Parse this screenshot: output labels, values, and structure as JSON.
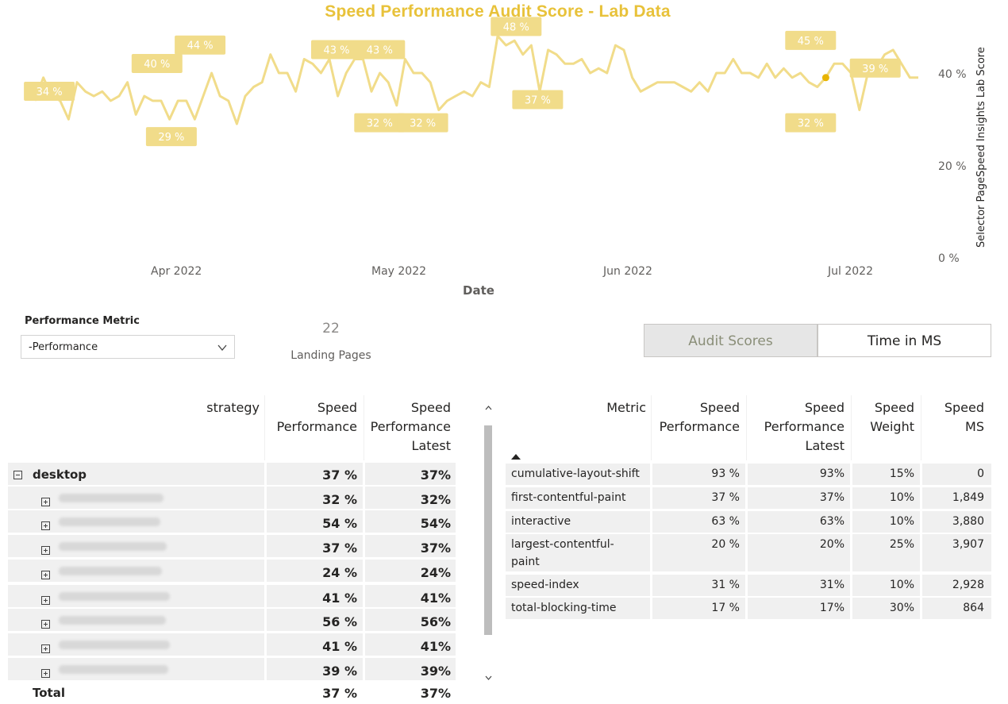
{
  "chart": {
    "title": "Speed Performance Audit Score - Lab Data",
    "x_label": "Date",
    "y_label": "Selector PageSpeed Insights Lab Score",
    "y_ticks": [
      "40 %",
      "20 %",
      "0 %"
    ],
    "x_ticks": [
      "Apr 2022",
      "May 2022",
      "Jun 2022",
      "Jul 2022"
    ],
    "line_color": "#f1dc8a",
    "highlight_color": "#e8b400"
  },
  "chart_data": {
    "type": "line",
    "title": "Speed Performance Audit Score - Lab Data",
    "xlabel": "Date",
    "ylabel": "Selector PageSpeed Insights Lab Score",
    "ylim": [
      0,
      50
    ],
    "x_range": [
      "2022-03-15",
      "2022-07-16"
    ],
    "series": [
      {
        "values": [
          34,
          39,
          35,
          34,
          30,
          38,
          36,
          35,
          36,
          34,
          35,
          38,
          31,
          35,
          34,
          34,
          30,
          34,
          34,
          30,
          35,
          40,
          35,
          34,
          29,
          35,
          37,
          38,
          44,
          40,
          40,
          36,
          43,
          42,
          40,
          43,
          35,
          40,
          43,
          43,
          36,
          40,
          38,
          33,
          43,
          40,
          40,
          38,
          32,
          34,
          35,
          36,
          35,
          38,
          37,
          48,
          46,
          47,
          44,
          46,
          36,
          45,
          44,
          42,
          42,
          43,
          40,
          41,
          40,
          46,
          45,
          39,
          36,
          37,
          38,
          38,
          38,
          37,
          36,
          38,
          36,
          40,
          40,
          43,
          40,
          40,
          39,
          42,
          39,
          41,
          39,
          40,
          38,
          37,
          39,
          42,
          42,
          40,
          32,
          40,
          41,
          44,
          45,
          42,
          39,
          39
        ],
        "labels_shown": [
          {
            "date": "2022-03-17",
            "value": "34 %"
          },
          {
            "date": "2022-04-01",
            "value": "40 %"
          },
          {
            "date": "2022-04-03",
            "value": "29 %"
          },
          {
            "date": "2022-04-07",
            "value": "44 %"
          },
          {
            "date": "2022-04-26",
            "value": "43 %"
          },
          {
            "date": "2022-05-02",
            "value": "32 %"
          },
          {
            "date": "2022-05-02",
            "value": "43 %"
          },
          {
            "date": "2022-05-08",
            "value": "32 %"
          },
          {
            "date": "2022-05-21",
            "value": "48 %"
          },
          {
            "date": "2022-05-24",
            "value": "37 %"
          },
          {
            "date": "2022-07-01",
            "value": "45 %"
          },
          {
            "date": "2022-07-01",
            "value": "32 %"
          },
          {
            "date": "2022-07-10",
            "value": "39 %"
          }
        ]
      }
    ]
  },
  "filters": {
    "metric_label": "Performance Metric",
    "metric_value": "-Performance",
    "card_value": "22",
    "card_label": "Landing Pages",
    "toggle_audit": "Audit Scores",
    "toggle_time": "Time in MS"
  },
  "matrix": {
    "headers": {
      "strategy": "strategy",
      "speed_perf_1": "Speed",
      "speed_perf_2": "Performance",
      "latest_1": "Speed",
      "latest_2": "Performance",
      "latest_3": "Latest"
    },
    "group": {
      "name": "desktop",
      "perf": "37 %",
      "latest": "37%"
    },
    "rows": [
      {
        "perf": "32 %",
        "latest": "32%"
      },
      {
        "perf": "54 %",
        "latest": "54%"
      },
      {
        "perf": "37 %",
        "latest": "37%"
      },
      {
        "perf": "24 %",
        "latest": "24%"
      },
      {
        "perf": "41 %",
        "latest": "41%"
      },
      {
        "perf": "56 %",
        "latest": "56%"
      },
      {
        "perf": "41 %",
        "latest": "41%"
      },
      {
        "perf": "39 %",
        "latest": "39%"
      }
    ],
    "total": {
      "name": "Total",
      "perf": "37 %",
      "latest": "37%"
    }
  },
  "metrics_table": {
    "headers": {
      "metric": "Metric",
      "sp_1": "Speed",
      "sp_2": "Performance",
      "spl_1": "Speed",
      "spl_2": "Performance",
      "spl_3": "Latest",
      "sw_1": "Speed",
      "sw_2": "Weight",
      "ms_1": "Speed",
      "ms_2": "MS"
    },
    "rows": [
      {
        "metric": "cumulative-layout-shift",
        "perf": "93 %",
        "latest": "93%",
        "weight": "15%",
        "ms": "0"
      },
      {
        "metric": "first-contentful-paint",
        "perf": "37 %",
        "latest": "37%",
        "weight": "10%",
        "ms": "1,849"
      },
      {
        "metric": "interactive",
        "perf": "63 %",
        "latest": "63%",
        "weight": "10%",
        "ms": "3,880"
      },
      {
        "metric": "largest-contentful-",
        "metric2": "paint",
        "perf": "20 %",
        "latest": "20%",
        "weight": "25%",
        "ms": "3,907"
      },
      {
        "metric": "speed-index",
        "perf": "31 %",
        "latest": "31%",
        "weight": "10%",
        "ms": "2,928"
      },
      {
        "metric": "total-blocking-time",
        "perf": "17 %",
        "latest": "17%",
        "weight": "30%",
        "ms": "864"
      }
    ]
  }
}
